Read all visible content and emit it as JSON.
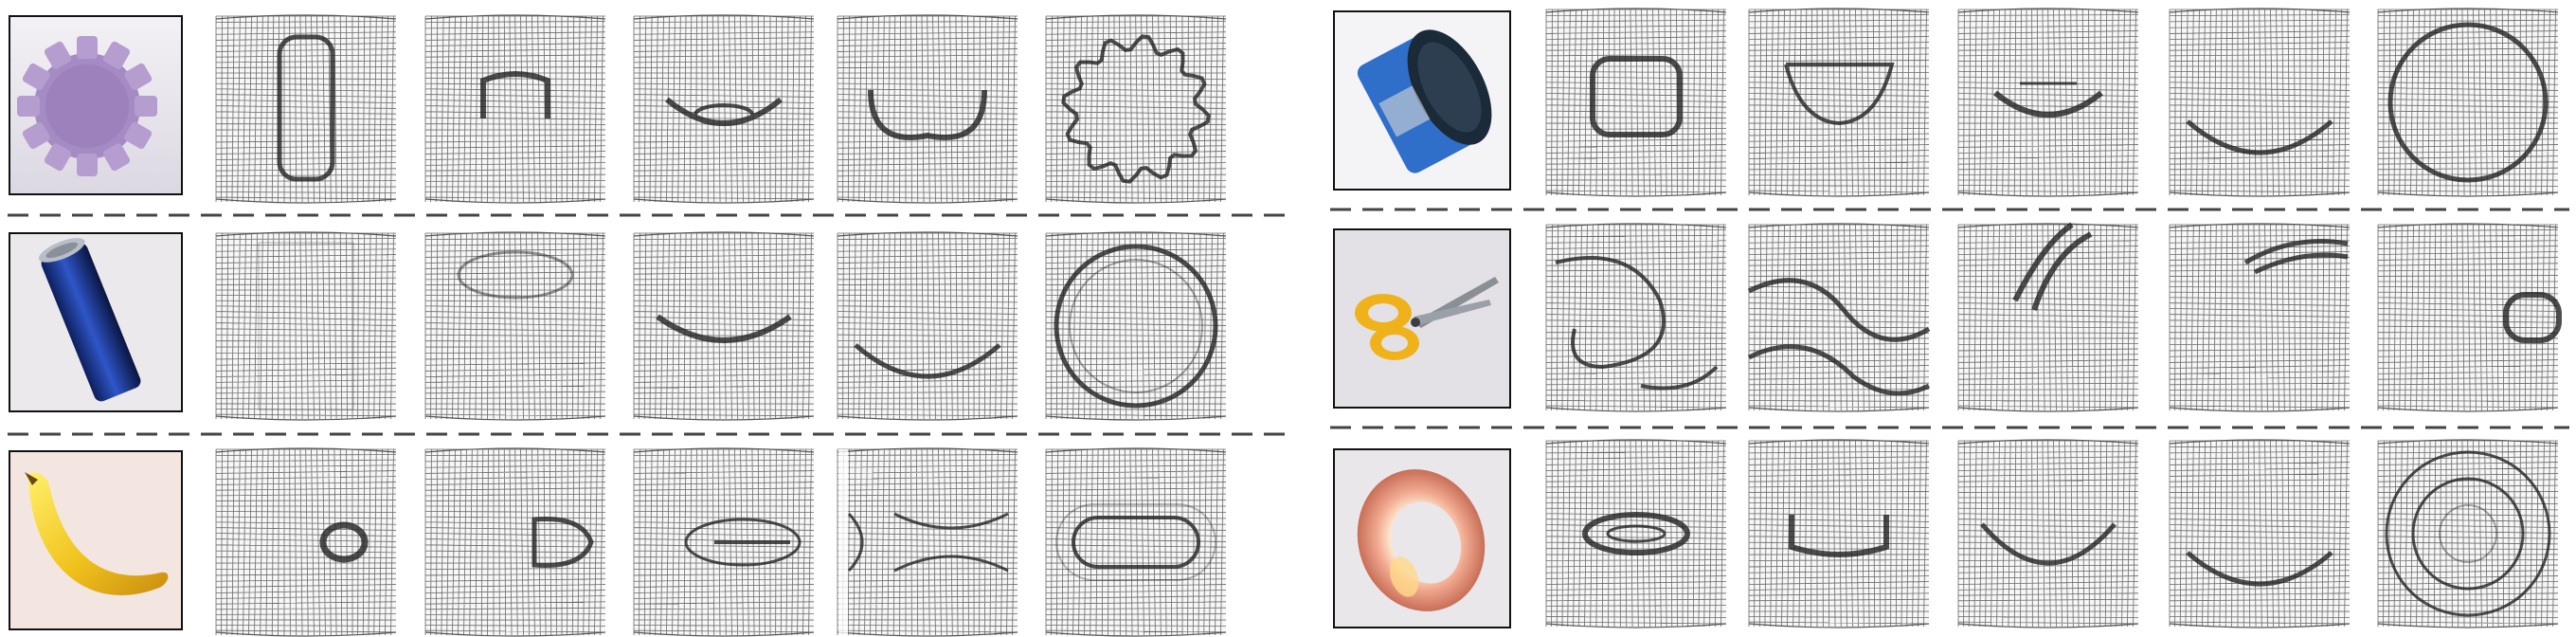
{
  "layout_note": "",
  "groups": [
    {
      "id": "left",
      "rows": [
        {
          "object_id": "gear",
          "object_name": "gear",
          "colors": [
            "#c9b6d9",
            "#a58bc3",
            "#7d5fa4"
          ],
          "deformation_patterns": [
            "vertical-bar",
            "small-arch",
            "arch-down",
            "U-shape",
            "scalloped-ring"
          ]
        },
        {
          "object_id": "can",
          "object_name": "soda-can",
          "colors": [
            "#1e3fa0",
            "#0d1f5c",
            "#9aa3ae"
          ],
          "deformation_patterns": [
            "faint-columns",
            "top-band",
            "smile-arc",
            "low-arc",
            "ring"
          ]
        },
        {
          "object_id": "banana",
          "object_name": "banana",
          "colors": [
            "#f3d22a",
            "#e0a51a",
            "#6b4a12"
          ],
          "deformation_patterns": [
            "right-blob",
            "right-edge-dent",
            "mid-lens",
            "seam-split",
            "capsule-outline"
          ]
        }
      ]
    },
    {
      "id": "right",
      "rows": [
        {
          "object_id": "tin",
          "object_name": "tuna-tin",
          "colors": [
            "#1b2a38",
            "#2f6fc9",
            "#d8d8d8"
          ],
          "deformation_patterns": [
            "square-cup",
            "bowl",
            "bowl-arc",
            "low-arc",
            "circle"
          ]
        },
        {
          "object_id": "scissors",
          "object_name": "scissors",
          "colors": [
            "#f0b21a",
            "#8a8f96",
            "#3a3d41"
          ],
          "deformation_patterns": [
            "swirl",
            "wave-bands",
            "top-crease",
            "top-right-crease",
            "right-tab"
          ]
        },
        {
          "object_id": "ring",
          "object_name": "copper-ring",
          "colors": [
            "#f2b49b",
            "#d8826b",
            "#ffe8c8"
          ],
          "deformation_patterns": [
            "oval-ring",
            "cup",
            "deep-bowl",
            "low-arc",
            "concentric-rings"
          ]
        }
      ]
    }
  ]
}
